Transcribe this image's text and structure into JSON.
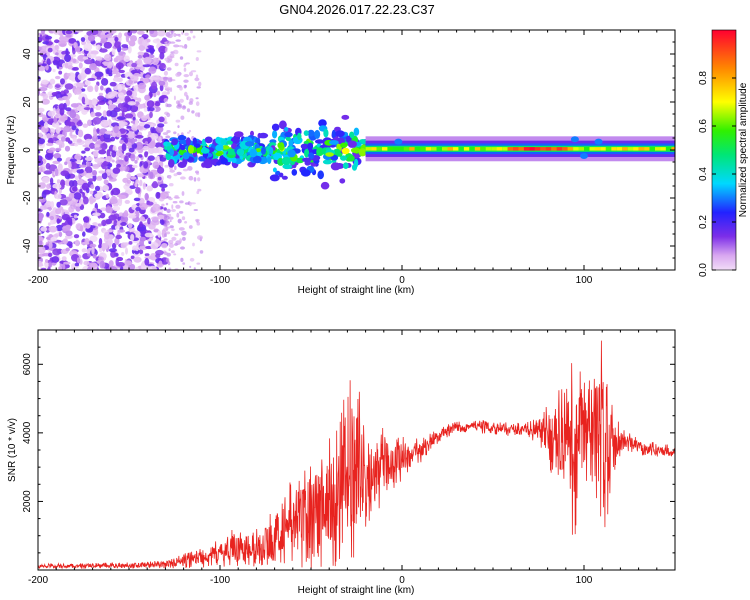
{
  "title": "GN04.2026.017.22.23.C37",
  "chart_data": [
    {
      "type": "heatmap",
      "title": "GN04.2026.017.22.23.C37",
      "xlabel": "Height of straight line (km)",
      "ylabel": "Frequency (Hz)",
      "xlim": [
        -200,
        150
      ],
      "ylim": [
        -50,
        50
      ],
      "x_ticks": [
        -200,
        -100,
        0,
        100
      ],
      "y_ticks": [
        -40,
        -20,
        0,
        20,
        40
      ],
      "x_tick_labels": [
        "-200",
        "-100",
        "0",
        "100"
      ],
      "y_tick_labels": [
        "-40",
        "-20",
        "0",
        "20",
        "40"
      ],
      "colorbar": {
        "label": "Normalized spectral amplitude",
        "range": [
          0,
          1
        ],
        "ticks": [
          0.0,
          0.2,
          0.4,
          0.6,
          0.8
        ],
        "tick_labels": [
          "0.0",
          "0.2",
          "0.4",
          "0.6",
          "0.8"
        ]
      },
      "regions": [
        {
          "name": "noise",
          "x": [
            -200,
            -130
          ],
          "freq_range": [
            -50,
            50
          ],
          "amplitude": 0.1
        },
        {
          "name": "sparse",
          "x": [
            -130,
            -110
          ],
          "freq_range": [
            -50,
            50
          ],
          "amplitude": 0.05
        },
        {
          "name": "scattered",
          "x": [
            -130,
            -20
          ],
          "center_freq": 0,
          "spread_hz": 10,
          "amplitude": 0.3
        },
        {
          "name": "band",
          "x": [
            -20,
            150
          ],
          "center_freq": 0.5,
          "width_hz": 4,
          "amplitude": 0.85
        }
      ]
    },
    {
      "type": "line",
      "xlabel": "Height of straight line (km)",
      "ylabel": "SNR (10 * v/v)",
      "xlim": [
        -200,
        150
      ],
      "ylim": [
        0,
        7000
      ],
      "x_ticks": [
        -200,
        -100,
        0,
        100
      ],
      "y_ticks": [
        2000,
        4000,
        6000
      ],
      "x_tick_labels": [
        "-200",
        "-100",
        "0",
        "100"
      ],
      "y_tick_labels": [
        "2000",
        "4000",
        "6000"
      ],
      "color": "#e8231f",
      "series": [
        {
          "name": "SNR",
          "x": [
            -200,
            -180,
            -160,
            -140,
            -130,
            -120,
            -110,
            -100,
            -95,
            -90,
            -85,
            -80,
            -75,
            -70,
            -65,
            -60,
            -55,
            -50,
            -45,
            -40,
            -35,
            -30,
            -27,
            -25,
            -22,
            -20,
            -15,
            -10,
            -5,
            0,
            5,
            10,
            15,
            20,
            25,
            30,
            40,
            50,
            60,
            70,
            75,
            80,
            85,
            90,
            93,
            95,
            100,
            105,
            108,
            110,
            112,
            115,
            120,
            125,
            130,
            140,
            150
          ],
          "values": [
            120,
            110,
            130,
            150,
            160,
            260,
            380,
            500,
            600,
            700,
            520,
            650,
            800,
            1000,
            1250,
            1400,
            1550,
            1750,
            1850,
            2000,
            2250,
            2550,
            2900,
            2700,
            3000,
            2400,
            2600,
            3200,
            3100,
            3300,
            3300,
            3500,
            3700,
            3900,
            4050,
            4150,
            4200,
            4150,
            4100,
            4100,
            4050,
            3950,
            3800,
            3900,
            3500,
            3500,
            3900,
            4100,
            4200,
            4000,
            3800,
            3800,
            3800,
            3700,
            3600,
            3500,
            3450
          ],
          "noise": [
            80,
            80,
            90,
            100,
            120,
            220,
            320,
            400,
            500,
            700,
            500,
            600,
            700,
            900,
            1100,
            1300,
            1500,
            1700,
            1900,
            2100,
            2400,
            2700,
            3300,
            2500,
            2200,
            1600,
            1200,
            1000,
            800,
            700,
            500,
            400,
            300,
            200,
            200,
            200,
            200,
            200,
            200,
            250,
            400,
            900,
            1400,
            2000,
            2600,
            2800,
            2200,
            1800,
            2400,
            3000,
            2700,
            1200,
            500,
            300,
            250,
            200,
            200
          ]
        }
      ]
    }
  ]
}
